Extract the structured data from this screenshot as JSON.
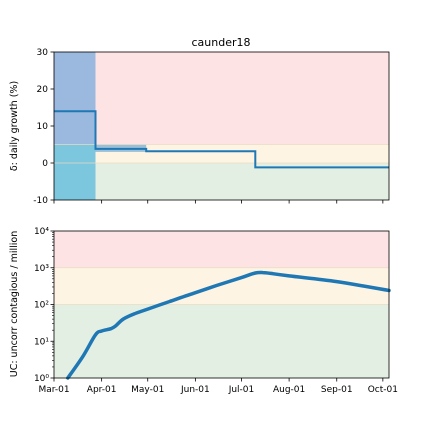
{
  "colors": {
    "zone_red": "#fde3e3",
    "zone_yellow": "#fdf4e3",
    "zone_green": "#e4efe3",
    "early_blue_top": "#9bb9df",
    "early_blue_bottom": "#7cc6de",
    "band_blue": "#9bbfd8",
    "series": "#1f77b4"
  },
  "chart_data": [
    {
      "type": "line",
      "title": "caunder18",
      "xlabel": "",
      "ylabel": "δ: daily growth (%)",
      "xlim": [
        "2020-03-01",
        "2020-10-05"
      ],
      "ylim": [
        -10,
        30
      ],
      "yticks": [
        -10,
        0,
        10,
        20,
        30
      ],
      "zones": [
        {
          "name": "red",
          "from": 5,
          "to": 30
        },
        {
          "name": "yellow",
          "from": 0,
          "to": 5
        },
        {
          "name": "green",
          "from": -10,
          "to": 0
        }
      ],
      "early_shaded_period": [
        "2020-03-01",
        "2020-03-28"
      ],
      "ci_band": {
        "x": [
          "2020-03-28",
          "2020-04-30"
        ],
        "y": [
          3.0,
          5.0
        ]
      },
      "series": [
        {
          "x": [
            "2020-03-01",
            "2020-03-28",
            "2020-03-28",
            "2020-04-30",
            "2020-04-30",
            "2020-07-10",
            "2020-07-10",
            "2020-10-05"
          ],
          "y": [
            14,
            14,
            3.8,
            3.8,
            3.2,
            3.2,
            -1.2,
            -1.2
          ]
        }
      ]
    },
    {
      "type": "line",
      "title": "",
      "xlabel": "",
      "ylabel": "UC: uncorr contagious / million",
      "yscale": "log",
      "xlim": [
        "2020-03-01",
        "2020-10-05"
      ],
      "ylim": [
        1,
        10000
      ],
      "ytick_labels": [
        "10⁰",
        "10¹",
        "10²",
        "10³",
        "10⁴"
      ],
      "xtick_labels": [
        "Mar-01",
        "Apr-01",
        "May-01",
        "Jun-01",
        "Jul-01",
        "Aug-01",
        "Sep-01",
        "Oct-01"
      ],
      "xtick_dates": [
        "2020-03-01",
        "2020-04-01",
        "2020-05-01",
        "2020-06-01",
        "2020-07-01",
        "2020-08-01",
        "2020-09-01",
        "2020-10-01"
      ],
      "zones": [
        {
          "name": "red",
          "from": 1000,
          "to": 10000
        },
        {
          "name": "yellow",
          "from": 100,
          "to": 1000
        },
        {
          "name": "green",
          "from": 1,
          "to": 100
        }
      ],
      "series": [
        {
          "x": [
            "2020-03-10",
            "2020-03-20",
            "2020-03-28",
            "2020-04-01",
            "2020-04-07",
            "2020-04-10",
            "2020-04-15",
            "2020-04-22",
            "2020-05-01",
            "2020-05-15",
            "2020-06-01",
            "2020-06-15",
            "2020-07-01",
            "2020-07-10",
            "2020-07-15",
            "2020-07-20",
            "2020-08-01",
            "2020-09-01",
            "2020-10-05"
          ],
          "y": [
            1.0,
            4.0,
            15,
            19,
            22,
            26,
            40,
            55,
            75,
            120,
            210,
            330,
            540,
            720,
            740,
            700,
            600,
            420,
            240
          ]
        }
      ]
    }
  ]
}
